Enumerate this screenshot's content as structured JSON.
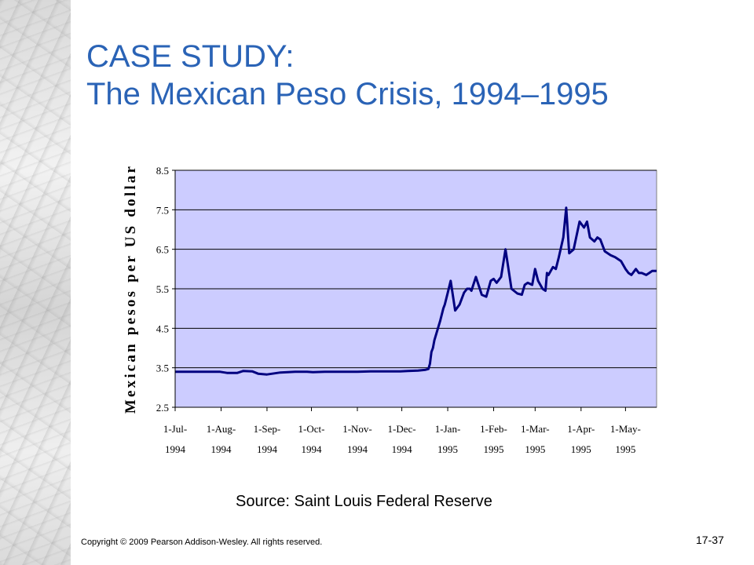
{
  "slide": {
    "title_line1": "CASE STUDY:",
    "title_line2": "The Mexican Peso Crisis, 1994–1995",
    "source": "Source: Saint Louis Federal Reserve",
    "copyright": "Copyright © 2009 Pearson Addison-Wesley. All rights reserved.",
    "slide_number": "17-37"
  },
  "colors": {
    "title": "#2a63b6",
    "plot_background": "#ccccff",
    "series_line": "#000080",
    "gridline": "#000000"
  },
  "chart_data": {
    "type": "line",
    "title": "",
    "xlabel": "",
    "ylabel": "Mexican pesos per US dollar",
    "ylim": [
      2.5,
      8.5
    ],
    "yticks": [
      "8.5",
      "7.5",
      "6.5",
      "5.5",
      "4.5",
      "3.5",
      "2.5"
    ],
    "xticks": [
      {
        "line1": "1-Jul-",
        "line2": "1994",
        "date": "1994-07-01"
      },
      {
        "line1": "1-Aug-",
        "line2": "1994",
        "date": "1994-08-01"
      },
      {
        "line1": "1-Sep-",
        "line2": "1994",
        "date": "1994-09-01"
      },
      {
        "line1": "1-Oct-",
        "line2": "1994",
        "date": "1994-10-01"
      },
      {
        "line1": "1-Nov-",
        "line2": "1994",
        "date": "1994-11-01"
      },
      {
        "line1": "1-Dec-",
        "line2": "1994",
        "date": "1994-12-01"
      },
      {
        "line1": "1-Jan-",
        "line2": "1995",
        "date": "1995-01-01"
      },
      {
        "line1": "1-Feb-",
        "line2": "1995",
        "date": "1995-02-01"
      },
      {
        "line1": "1-Mar-",
        "line2": "1995",
        "date": "1995-03-01"
      },
      {
        "line1": "1-Apr-",
        "line2": "1995",
        "date": "1995-04-01"
      },
      {
        "line1": "1-May-",
        "line2": "1995",
        "date": "1995-05-01"
      }
    ],
    "xlim": [
      "1994-07-01",
      "1995-05-22"
    ],
    "grid": "horizontal",
    "legend": "none",
    "series": [
      {
        "x": [
          "1994-07-01",
          "1994-07-15",
          "1994-07-31",
          "1994-08-05",
          "1994-08-12",
          "1994-08-16",
          "1994-08-22",
          "1994-08-26",
          "1994-09-01",
          "1994-09-10",
          "1994-09-20",
          "1994-09-28",
          "1994-10-02",
          "1994-10-10",
          "1994-10-20",
          "1994-11-01",
          "1994-11-10",
          "1994-11-20",
          "1994-11-30",
          "1994-12-05",
          "1994-12-12",
          "1994-12-17",
          "1994-12-19",
          "1994-12-20",
          "1994-12-21",
          "1994-12-22",
          "1994-12-23",
          "1994-12-27",
          "1994-12-29",
          "1994-12-30",
          "1995-01-01",
          "1995-01-03",
          "1995-01-06",
          "1995-01-09",
          "1995-01-12",
          "1995-01-14",
          "1995-01-16",
          "1995-01-17",
          "1995-01-20",
          "1995-01-24",
          "1995-01-27",
          "1995-01-30",
          "1995-02-01",
          "1995-02-03",
          "1995-02-06",
          "1995-02-09",
          "1995-02-13",
          "1995-02-17",
          "1995-02-20",
          "1995-02-22",
          "1995-02-24",
          "1995-02-27",
          "1995-03-01",
          "1995-03-03",
          "1995-03-06",
          "1995-03-08",
          "1995-03-09",
          "1995-03-10",
          "1995-03-13",
          "1995-03-15",
          "1995-03-17",
          "1995-03-20",
          "1995-03-22",
          "1995-03-24",
          "1995-03-27",
          "1995-03-31",
          "1995-04-03",
          "1995-04-05",
          "1995-04-07",
          "1995-04-10",
          "1995-04-12",
          "1995-04-14",
          "1995-04-17",
          "1995-04-21",
          "1995-04-24",
          "1995-04-28",
          "1995-05-01",
          "1995-05-03",
          "1995-05-05",
          "1995-05-08",
          "1995-05-10",
          "1995-05-12",
          "1995-05-15",
          "1995-05-17",
          "1995-05-19",
          "1995-05-22"
        ],
        "y": [
          3.4,
          3.4,
          3.4,
          3.37,
          3.37,
          3.42,
          3.41,
          3.35,
          3.33,
          3.38,
          3.4,
          3.4,
          3.39,
          3.4,
          3.4,
          3.4,
          3.41,
          3.41,
          3.41,
          3.42,
          3.43,
          3.45,
          3.47,
          3.6,
          3.9,
          4.0,
          4.2,
          4.7,
          5.0,
          5.1,
          5.4,
          5.7,
          4.95,
          5.1,
          5.4,
          5.5,
          5.5,
          5.45,
          5.8,
          5.35,
          5.3,
          5.7,
          5.75,
          5.65,
          5.8,
          6.5,
          5.5,
          5.38,
          5.35,
          5.6,
          5.65,
          5.6,
          6.0,
          5.7,
          5.5,
          5.45,
          5.9,
          5.85,
          6.05,
          6.0,
          6.3,
          6.8,
          7.55,
          6.4,
          6.5,
          7.2,
          7.05,
          7.2,
          6.8,
          6.7,
          6.8,
          6.75,
          6.45,
          6.35,
          6.3,
          6.2,
          6.0,
          5.9,
          5.85,
          6.0,
          5.9,
          5.9,
          5.85,
          5.9,
          5.95,
          5.95
        ]
      }
    ]
  }
}
